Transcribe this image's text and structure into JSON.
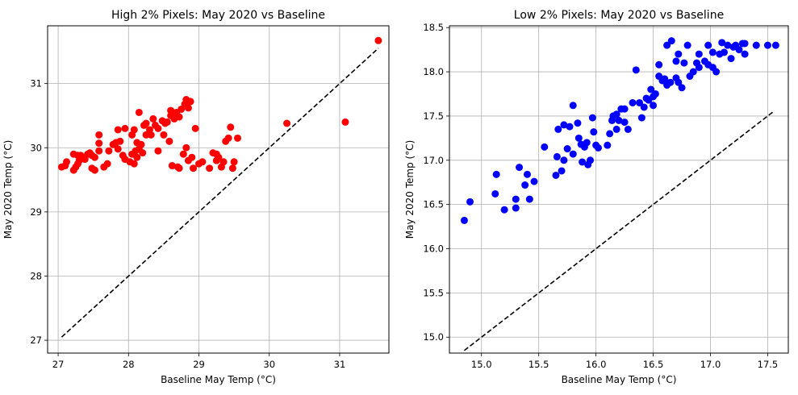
{
  "chart_data": [
    {
      "type": "scatter",
      "title": "High 2% Pixels: May 2020 vs Baseline",
      "xlabel": "Baseline May Temp (°C)",
      "ylabel": "May 2020 Temp (°C)",
      "xlim": [
        26.85,
        31.7
      ],
      "ylim": [
        26.8,
        31.9
      ],
      "xticks": [
        27,
        28,
        29,
        30,
        31
      ],
      "yticks": [
        27,
        28,
        29,
        30,
        31
      ],
      "xtick_labels": [
        "27",
        "28",
        "29",
        "30",
        "31"
      ],
      "ytick_labels": [
        "27",
        "28",
        "29",
        "30",
        "31"
      ],
      "grid": true,
      "point_color": "#ff0000",
      "reference_line": {
        "x": [
          27.05,
          31.55
        ],
        "y": [
          27.05,
          31.55
        ],
        "style": "dashed",
        "color": "#000000"
      },
      "points": [
        [
          27.05,
          29.7
        ],
        [
          27.1,
          29.72
        ],
        [
          27.12,
          29.78
        ],
        [
          27.22,
          29.65
        ],
        [
          27.25,
          29.7
        ],
        [
          27.28,
          29.75
        ],
        [
          27.3,
          29.8
        ],
        [
          27.32,
          29.88
        ],
        [
          27.35,
          29.85
        ],
        [
          27.38,
          29.82
        ],
        [
          27.22,
          29.9
        ],
        [
          27.28,
          29.88
        ],
        [
          27.42,
          29.9
        ],
        [
          27.45,
          29.92
        ],
        [
          27.48,
          29.88
        ],
        [
          27.52,
          29.85
        ],
        [
          27.48,
          29.68
        ],
        [
          27.52,
          29.65
        ],
        [
          27.58,
          29.95
        ],
        [
          27.58,
          30.07
        ],
        [
          27.58,
          30.2
        ],
        [
          27.65,
          29.7
        ],
        [
          27.7,
          29.75
        ],
        [
          27.72,
          29.95
        ],
        [
          27.78,
          30.05
        ],
        [
          27.82,
          30.08
        ],
        [
          27.85,
          29.98
        ],
        [
          27.85,
          30.28
        ],
        [
          27.88,
          30.1
        ],
        [
          27.92,
          29.88
        ],
        [
          27.95,
          29.82
        ],
        [
          27.95,
          30.3
        ],
        [
          28.02,
          29.78
        ],
        [
          28.05,
          29.9
        ],
        [
          28.05,
          30.2
        ],
        [
          28.08,
          29.75
        ],
        [
          28.08,
          30.28
        ],
        [
          28.1,
          29.95
        ],
        [
          28.12,
          29.85
        ],
        [
          28.12,
          30.08
        ],
        [
          28.15,
          29.98
        ],
        [
          28.15,
          30.55
        ],
        [
          28.18,
          30.05
        ],
        [
          28.2,
          29.92
        ],
        [
          28.22,
          30.35
        ],
        [
          28.25,
          30.2
        ],
        [
          28.25,
          30.38
        ],
        [
          28.3,
          30.28
        ],
        [
          28.32,
          30.2
        ],
        [
          28.35,
          30.45
        ],
        [
          28.38,
          30.35
        ],
        [
          28.42,
          30.3
        ],
        [
          28.42,
          29.95
        ],
        [
          28.48,
          30.42
        ],
        [
          28.5,
          30.2
        ],
        [
          28.52,
          30.38
        ],
        [
          28.55,
          30.4
        ],
        [
          28.58,
          30.1
        ],
        [
          28.6,
          30.5
        ],
        [
          28.6,
          30.58
        ],
        [
          28.62,
          29.72
        ],
        [
          28.65,
          30.45
        ],
        [
          28.68,
          30.55
        ],
        [
          28.7,
          29.7
        ],
        [
          28.72,
          29.68
        ],
        [
          28.72,
          30.48
        ],
        [
          28.75,
          30.6
        ],
        [
          28.78,
          29.9
        ],
        [
          28.8,
          30.68
        ],
        [
          28.82,
          30.75
        ],
        [
          28.82,
          30.0
        ],
        [
          28.85,
          30.62
        ],
        [
          28.85,
          29.8
        ],
        [
          28.88,
          30.72
        ],
        [
          28.9,
          29.85
        ],
        [
          28.92,
          29.68
        ],
        [
          28.95,
          30.3
        ],
        [
          29.0,
          29.75
        ],
        [
          29.05,
          29.78
        ],
        [
          29.15,
          29.68
        ],
        [
          29.2,
          29.92
        ],
        [
          29.25,
          29.8
        ],
        [
          29.25,
          29.9
        ],
        [
          29.28,
          29.85
        ],
        [
          29.32,
          29.7
        ],
        [
          29.35,
          29.78
        ],
        [
          29.38,
          30.1
        ],
        [
          29.42,
          30.15
        ],
        [
          29.45,
          30.32
        ],
        [
          29.48,
          29.68
        ],
        [
          29.5,
          29.78
        ],
        [
          29.55,
          30.15
        ],
        [
          30.25,
          30.38
        ],
        [
          31.08,
          30.4
        ],
        [
          31.55,
          31.67
        ]
      ]
    },
    {
      "type": "scatter",
      "title": "Low 2% Pixels: May 2020 vs Baseline",
      "xlabel": "Baseline May Temp (°C)",
      "ylabel": "May 2020 Temp (°C)",
      "xlim": [
        14.72,
        17.68
      ],
      "ylim": [
        14.82,
        18.52
      ],
      "xticks": [
        15.0,
        15.5,
        16.0,
        16.5,
        17.0,
        17.5
      ],
      "yticks": [
        15.0,
        15.5,
        16.0,
        16.5,
        17.0,
        17.5,
        18.0,
        18.5
      ],
      "xtick_labels": [
        "15.0",
        "15.5",
        "16.0",
        "16.5",
        "17.0",
        "17.5"
      ],
      "ytick_labels": [
        "15.0",
        "15.5",
        "16.0",
        "16.5",
        "17.0",
        "17.5",
        "18.0",
        "18.5"
      ],
      "grid": true,
      "point_color": "#0000ff",
      "reference_line": {
        "x": [
          14.85,
          17.55
        ],
        "y": [
          14.85,
          17.55
        ],
        "style": "dashed",
        "color": "#000000"
      },
      "points": [
        [
          14.85,
          16.32
        ],
        [
          14.9,
          16.53
        ],
        [
          15.12,
          16.62
        ],
        [
          15.13,
          16.84
        ],
        [
          15.2,
          16.44
        ],
        [
          15.3,
          16.46
        ],
        [
          15.3,
          16.56
        ],
        [
          15.33,
          16.92
        ],
        [
          15.38,
          16.72
        ],
        [
          15.4,
          16.84
        ],
        [
          15.42,
          16.56
        ],
        [
          15.46,
          16.76
        ],
        [
          15.55,
          17.15
        ],
        [
          15.65,
          16.83
        ],
        [
          15.66,
          17.04
        ],
        [
          15.67,
          17.35
        ],
        [
          15.7,
          16.88
        ],
        [
          15.72,
          17.0
        ],
        [
          15.72,
          17.4
        ],
        [
          15.75,
          17.13
        ],
        [
          15.77,
          17.38
        ],
        [
          15.8,
          17.07
        ],
        [
          15.8,
          17.62
        ],
        [
          15.84,
          17.42
        ],
        [
          15.85,
          17.25
        ],
        [
          15.87,
          17.18
        ],
        [
          15.88,
          16.98
        ],
        [
          15.9,
          17.15
        ],
        [
          15.92,
          17.2
        ],
        [
          15.93,
          16.95
        ],
        [
          15.95,
          17.0
        ],
        [
          15.97,
          17.48
        ],
        [
          15.98,
          17.32
        ],
        [
          16.0,
          17.17
        ],
        [
          16.02,
          17.14
        ],
        [
          16.1,
          17.17
        ],
        [
          16.12,
          17.3
        ],
        [
          16.14,
          17.45
        ],
        [
          16.15,
          17.5
        ],
        [
          16.18,
          17.52
        ],
        [
          16.18,
          17.35
        ],
        [
          16.2,
          17.45
        ],
        [
          16.22,
          17.58
        ],
        [
          16.25,
          17.43
        ],
        [
          16.25,
          17.58
        ],
        [
          16.28,
          17.35
        ],
        [
          16.32,
          17.65
        ],
        [
          16.35,
          18.02
        ],
        [
          16.38,
          17.65
        ],
        [
          16.4,
          17.48
        ],
        [
          16.42,
          17.6
        ],
        [
          16.44,
          17.7
        ],
        [
          16.46,
          17.68
        ],
        [
          16.48,
          17.8
        ],
        [
          16.5,
          17.72
        ],
        [
          16.5,
          17.62
        ],
        [
          16.52,
          17.75
        ],
        [
          16.55,
          18.08
        ],
        [
          16.55,
          17.95
        ],
        [
          16.58,
          17.9
        ],
        [
          16.6,
          17.92
        ],
        [
          16.62,
          18.3
        ],
        [
          16.62,
          17.85
        ],
        [
          16.65,
          17.88
        ],
        [
          16.66,
          18.35
        ],
        [
          16.7,
          17.93
        ],
        [
          16.7,
          18.12
        ],
        [
          16.72,
          17.88
        ],
        [
          16.72,
          18.2
        ],
        [
          16.75,
          17.82
        ],
        [
          16.77,
          18.1
        ],
        [
          16.8,
          18.3
        ],
        [
          16.82,
          17.95
        ],
        [
          16.85,
          18.0
        ],
        [
          16.88,
          18.1
        ],
        [
          16.9,
          18.05
        ],
        [
          16.9,
          18.2
        ],
        [
          16.95,
          18.12
        ],
        [
          16.98,
          18.3
        ],
        [
          16.98,
          18.08
        ],
        [
          17.02,
          18.05
        ],
        [
          17.02,
          18.22
        ],
        [
          17.05,
          18.0
        ],
        [
          17.08,
          18.2
        ],
        [
          17.1,
          18.33
        ],
        [
          17.12,
          18.22
        ],
        [
          17.15,
          18.3
        ],
        [
          17.18,
          18.15
        ],
        [
          17.2,
          18.28
        ],
        [
          17.22,
          18.3
        ],
        [
          17.25,
          18.25
        ],
        [
          17.28,
          18.32
        ],
        [
          17.3,
          18.2
        ],
        [
          17.3,
          18.32
        ],
        [
          17.4,
          18.3
        ],
        [
          17.5,
          18.3
        ],
        [
          17.57,
          18.3
        ]
      ]
    }
  ]
}
